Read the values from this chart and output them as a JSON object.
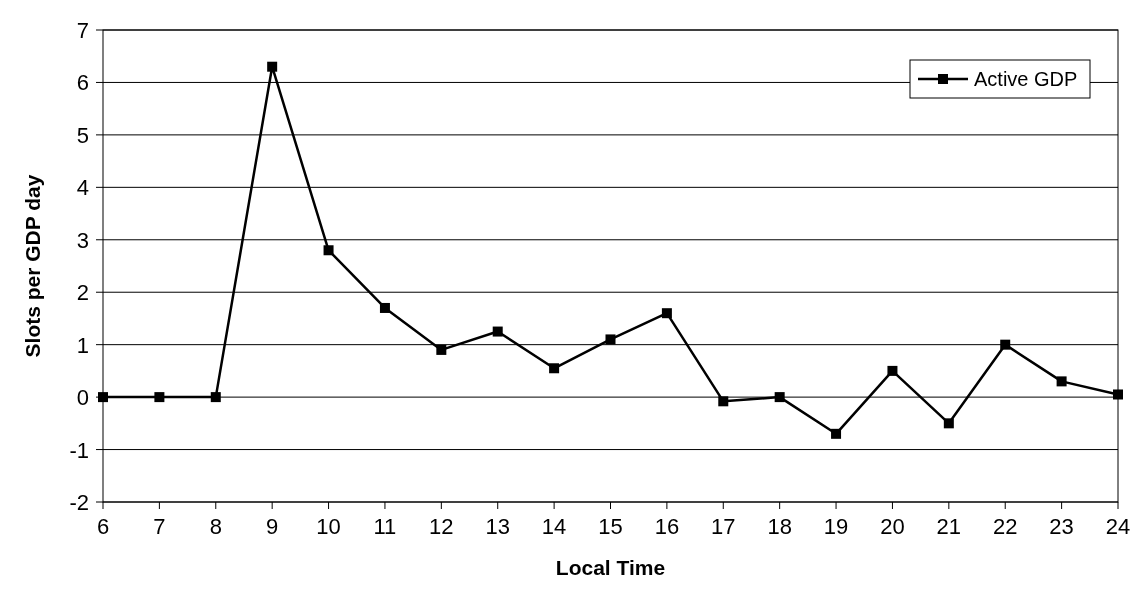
{
  "chart_data": {
    "type": "line",
    "xlabel": "Local Time",
    "ylabel": "Slots per GDP day",
    "x": [
      6,
      7,
      8,
      9,
      10,
      11,
      12,
      13,
      14,
      15,
      16,
      17,
      18,
      19,
      20,
      21,
      22,
      23,
      24
    ],
    "series": [
      {
        "name": "Active GDP",
        "color": "#000000",
        "values": [
          0,
          0,
          0,
          6.3,
          2.8,
          1.7,
          0.9,
          1.25,
          0.55,
          1.1,
          1.6,
          -0.08,
          0,
          -0.7,
          0.5,
          -0.5,
          1.0,
          0.3,
          0.05
        ]
      }
    ],
    "xlim": [
      6,
      24
    ],
    "xticks": [
      6,
      7,
      8,
      9,
      10,
      11,
      12,
      13,
      14,
      15,
      16,
      17,
      18,
      19,
      20,
      21,
      22,
      23,
      24
    ],
    "ylim": [
      -2,
      7
    ],
    "yticks": [
      -2,
      -1,
      0,
      1,
      2,
      3,
      4,
      5,
      6,
      7
    ],
    "grid": "y",
    "legend": "top right",
    "marker": "square",
    "line_style": "solid"
  }
}
